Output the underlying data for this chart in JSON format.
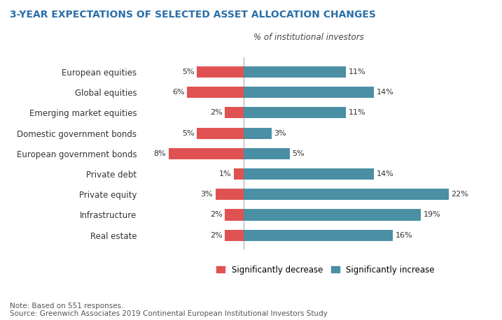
{
  "title": "3-YEAR EXPECTATIONS OF SELECTED ASSET ALLOCATION CHANGES",
  "subtitle": "% of institutional investors",
  "categories": [
    "European equities",
    "Global equities",
    "Emerging market equities",
    "Domestic government bonds",
    "European government bonds",
    "Private debt",
    "Private equity",
    "Infrastructure",
    "Real estate"
  ],
  "decrease": [
    5,
    6,
    2,
    5,
    8,
    1,
    3,
    2,
    2
  ],
  "increase": [
    11,
    14,
    11,
    3,
    5,
    14,
    22,
    19,
    16
  ],
  "decrease_color": "#e05252",
  "increase_color": "#4a8fa3",
  "title_color": "#2b6fa8",
  "subtitle_color": "#444444",
  "note": "Note: Based on 551 responses.",
  "source": "Source: Greenwich Associates 2019 Continental European Institutional Investors Study",
  "bar_height": 0.55,
  "center_line_color": "#aaaaaa",
  "background_color": "#ffffff",
  "xlim_left": -11,
  "xlim_right": 25
}
